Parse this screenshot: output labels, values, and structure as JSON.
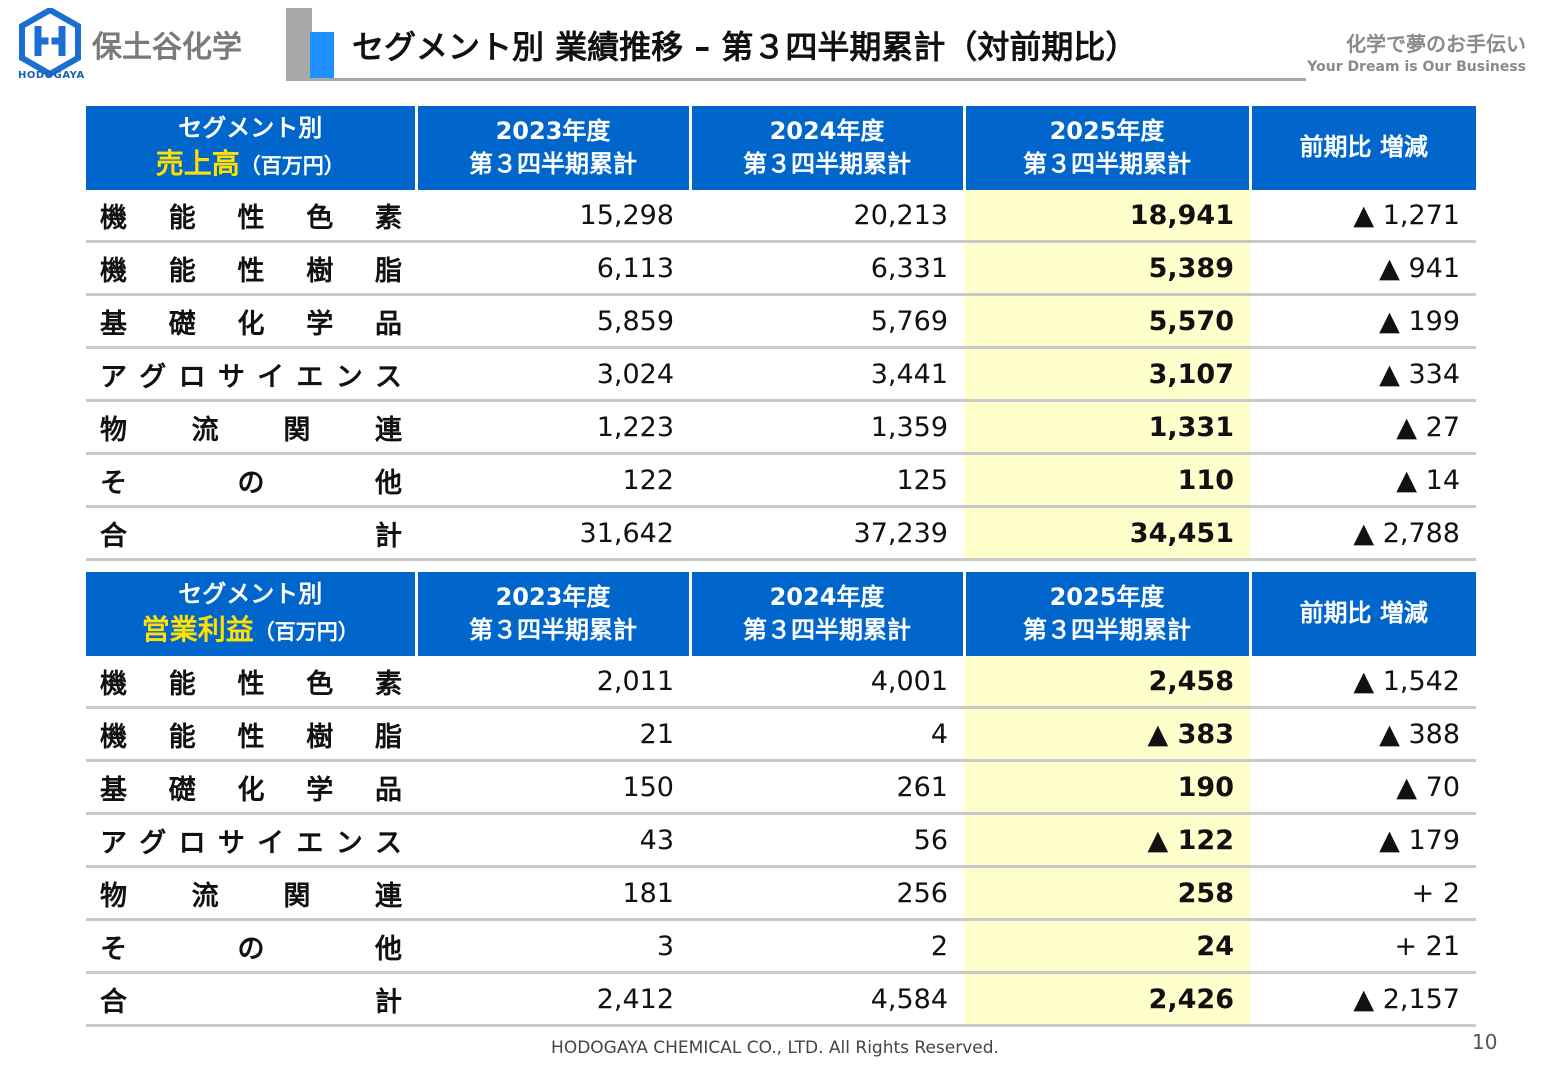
{
  "header": {
    "company": "保土谷化学",
    "logo_caption": "HODOGAYA",
    "title": "セグメント別 業績推移 – 第３四半期累計（対前期比）",
    "slogan_jp": "化学で夢のお手伝い",
    "slogan_en": "Your Dream is Our Business"
  },
  "columns": {
    "y2023_line1": "2023年度",
    "y2023_line2": "第３四半期累計",
    "y2024_line1": "2024年度",
    "y2024_line2": "第３四半期累計",
    "y2025_line1": "2025年度",
    "y2025_line2": "第３四半期累計",
    "change": "前期比 増減"
  },
  "sales": {
    "head_line1": "セグメント別",
    "head_highlight": "売上高",
    "head_unit": "（百万円）",
    "rows": [
      {
        "label": [
          "機",
          "能",
          "性",
          "色",
          "素"
        ],
        "y2023": "15,298",
        "y2024": "20,213",
        "y2025": "18,941",
        "change": "▲ 1,271"
      },
      {
        "label": [
          "機",
          "能",
          "性",
          "樹",
          "脂"
        ],
        "y2023": "6,113",
        "y2024": "6,331",
        "y2025": "5,389",
        "change": "▲ 941"
      },
      {
        "label": [
          "基",
          "礎",
          "化",
          "学",
          "品"
        ],
        "y2023": "5,859",
        "y2024": "5,769",
        "y2025": "5,570",
        "change": "▲ 199"
      },
      {
        "label": [
          "ア",
          "グ",
          "ロ",
          "サ",
          "イ",
          "エ",
          "ン",
          "ス"
        ],
        "y2023": "3,024",
        "y2024": "3,441",
        "y2025": "3,107",
        "change": "▲ 334"
      },
      {
        "label": [
          "物",
          "流",
          "関",
          "連"
        ],
        "y2023": "1,223",
        "y2024": "1,359",
        "y2025": "1,331",
        "change": "▲ 27"
      },
      {
        "label": [
          "そ",
          "の",
          "他"
        ],
        "y2023": "122",
        "y2024": "125",
        "y2025": "110",
        "change": "▲ 14"
      },
      {
        "label": [
          "合",
          "計"
        ],
        "y2023": "31,642",
        "y2024": "37,239",
        "y2025": "34,451",
        "change": "▲ 2,788"
      }
    ]
  },
  "profit": {
    "head_line1": "セグメント別",
    "head_highlight": "営業利益",
    "head_unit": "（百万円）",
    "rows": [
      {
        "label": [
          "機",
          "能",
          "性",
          "色",
          "素"
        ],
        "y2023": "2,011",
        "y2024": "4,001",
        "y2025": "2,458",
        "change": "▲ 1,542"
      },
      {
        "label": [
          "機",
          "能",
          "性",
          "樹",
          "脂"
        ],
        "y2023": "21",
        "y2024": "4",
        "y2025": "▲ 383",
        "change": "▲ 388"
      },
      {
        "label": [
          "基",
          "礎",
          "化",
          "学",
          "品"
        ],
        "y2023": "150",
        "y2024": "261",
        "y2025": "190",
        "change": "▲ 70"
      },
      {
        "label": [
          "ア",
          "グ",
          "ロ",
          "サ",
          "イ",
          "エ",
          "ン",
          "ス"
        ],
        "y2023": "43",
        "y2024": "56",
        "y2025": "▲ 122",
        "change": "▲ 179"
      },
      {
        "label": [
          "物",
          "流",
          "関",
          "連"
        ],
        "y2023": "181",
        "y2024": "256",
        "y2025": "258",
        "change": "+ 2"
      },
      {
        "label": [
          "そ",
          "の",
          "他"
        ],
        "y2023": "3",
        "y2024": "2",
        "y2025": "24",
        "change": "+ 21"
      },
      {
        "label": [
          "合",
          "計"
        ],
        "y2023": "2,412",
        "y2024": "4,584",
        "y2025": "2,426",
        "change": "▲ 2,157"
      }
    ]
  },
  "footer": {
    "copyright": "HODOGAYA CHEMICAL CO., LTD. All Rights Reserved.",
    "page_number": "10"
  },
  "colors": {
    "header_blue": "#0066cc",
    "highlight_yellow_text": "#ffe000",
    "highlight_cell": "#ffffcc",
    "accent_blue": "#1e90ff"
  }
}
